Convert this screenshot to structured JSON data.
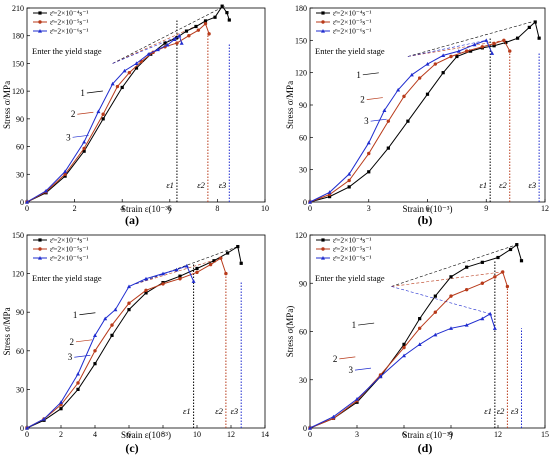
{
  "chart_data": [
    {
      "type": "line",
      "panel": "(a)",
      "xlabel": "Strain ε(10⁻³)",
      "ylabel": "Stress σ/MPa",
      "xlim": [
        0,
        10
      ],
      "ylim": [
        0,
        210
      ],
      "xticks": [
        0,
        2,
        4,
        6,
        8,
        10
      ],
      "yticks": [
        0,
        30,
        60,
        90,
        120,
        150,
        180,
        210
      ],
      "annotation": "Enter the yield stage",
      "strain_labels": [
        "ε1",
        "ε2",
        "ε3"
      ],
      "curve_numbers": [
        "1",
        "2",
        "3"
      ],
      "legend_placement": "top-left",
      "series": [
        {
          "name": "ε̄=2×10⁻⁴s⁻¹",
          "color": "#000000",
          "marker": "square",
          "x": [
            0,
            0.8,
            1.6,
            2.4,
            3.2,
            4.0,
            4.6,
            5.2,
            5.8,
            6.3,
            6.7,
            7.1,
            7.5,
            7.9,
            8.2,
            8.4,
            8.5
          ],
          "y": [
            0,
            10,
            28,
            55,
            90,
            124,
            145,
            160,
            172,
            178,
            185,
            190,
            196,
            200,
            212,
            205,
            197
          ]
        },
        {
          "name": "ε̄=2×10⁻⁵s⁻¹",
          "color": "#b83a1a",
          "marker": "circle",
          "x": [
            0,
            0.8,
            1.6,
            2.4,
            3.2,
            3.8,
            4.3,
            4.8,
            5.3,
            5.8,
            6.3,
            6.8,
            7.2,
            7.5,
            7.65
          ],
          "y": [
            0,
            11,
            30,
            58,
            95,
            125,
            140,
            152,
            162,
            168,
            172,
            180,
            186,
            193,
            182
          ]
        },
        {
          "name": "ε̄=2×10⁻⁶s⁻¹",
          "color": "#1f2ccf",
          "marker": "triangle",
          "x": [
            0,
            0.8,
            1.6,
            2.4,
            3.0,
            3.6,
            4.1,
            4.6,
            5.1,
            5.5,
            5.9,
            6.2,
            6.4,
            6.5
          ],
          "y": [
            0,
            12,
            33,
            65,
            98,
            128,
            142,
            150,
            160,
            165,
            170,
            176,
            180,
            172
          ]
        }
      ],
      "strain_values": [
        6.3,
        7.6,
        8.5
      ],
      "yield_lines": [
        {
          "color": "#000000",
          "x": [
            3.6,
            8.3
          ],
          "y": [
            150,
            212
          ]
        },
        {
          "color": "#b83a1a",
          "x": [
            3.6,
            7.5
          ],
          "y": [
            150,
            195
          ]
        },
        {
          "color": "#1f2ccf",
          "x": [
            3.6,
            6.4
          ],
          "y": [
            150,
            180
          ]
        }
      ]
    },
    {
      "type": "line",
      "panel": "(b)",
      "xlabel": "Strain ε(10⁻³)",
      "ylabel": "Stress σ/MPa",
      "xlim": [
        0,
        12
      ],
      "ylim": [
        0,
        180
      ],
      "xticks": [
        0,
        3,
        6,
        9,
        12
      ],
      "yticks": [
        0,
        30,
        60,
        90,
        120,
        150,
        180
      ],
      "annotation": "Enter the yield stage",
      "strain_labels": [
        "ε1",
        "ε2",
        "ε3"
      ],
      "curve_numbers": [
        "1",
        "2",
        "3"
      ],
      "legend_placement": "top-left",
      "series": [
        {
          "name": "ε̄=2×10⁻⁴s⁻¹",
          "color": "#000000",
          "marker": "square",
          "x": [
            0,
            1,
            2,
            3,
            4,
            5,
            6,
            6.8,
            7.5,
            8.2,
            8.8,
            9.4,
            10.0,
            10.6,
            11.2,
            11.5,
            11.7
          ],
          "y": [
            0,
            5,
            14,
            28,
            50,
            75,
            100,
            120,
            135,
            140,
            143,
            145,
            148,
            152,
            162,
            167,
            152
          ]
        },
        {
          "name": "ε̄=2×10⁻⁵s⁻¹",
          "color": "#b83a1a",
          "marker": "circle",
          "x": [
            0,
            1,
            2,
            3,
            4,
            4.8,
            5.6,
            6.4,
            7.2,
            8.0,
            8.8,
            9.4,
            9.9,
            10.2
          ],
          "y": [
            0,
            7,
            20,
            45,
            75,
            98,
            115,
            128,
            135,
            140,
            144,
            147,
            150,
            140
          ]
        },
        {
          "name": "ε̄=2×10⁻⁶s⁻¹",
          "color": "#1f2ccf",
          "marker": "triangle",
          "x": [
            0,
            1,
            2,
            3,
            3.8,
            4.5,
            5.2,
            6.0,
            6.8,
            7.6,
            8.4,
            9.0,
            9.3
          ],
          "y": [
            0,
            9,
            26,
            55,
            85,
            104,
            118,
            128,
            136,
            140,
            146,
            150,
            138
          ]
        }
      ],
      "strain_values": [
        9.2,
        10.2,
        11.7
      ],
      "yield_lines": [
        {
          "color": "#000000",
          "x": [
            5.0,
            11.3
          ],
          "y": [
            135,
            167
          ]
        },
        {
          "color": "#b83a1a",
          "x": [
            5.0,
            9.9
          ],
          "y": [
            135,
            150
          ]
        },
        {
          "color": "#1f2ccf",
          "x": [
            5.0,
            9.0
          ],
          "y": [
            135,
            150
          ]
        }
      ]
    },
    {
      "type": "line",
      "panel": "(c)",
      "xlabel": "Strain ε(10⁻³)",
      "ylabel": "Stress σ/MPa",
      "xlim": [
        0,
        14
      ],
      "ylim": [
        0,
        150
      ],
      "xticks": [
        0,
        2,
        4,
        6,
        8,
        10,
        12,
        14
      ],
      "yticks": [
        0,
        30,
        60,
        90,
        120,
        150
      ],
      "annotation": "Enter the yield stage",
      "strain_labels": [
        "ε1",
        "ε2",
        "ε3"
      ],
      "curve_numbers": [
        "1",
        "2",
        "3"
      ],
      "legend_placement": "top-left",
      "series": [
        {
          "name": "ε̄=2×10⁻⁴s⁻¹",
          "color": "#000000",
          "marker": "square",
          "x": [
            0,
            1,
            2,
            3,
            4,
            5,
            6,
            7,
            8,
            9,
            10,
            11,
            11.8,
            12.4,
            12.6
          ],
          "y": [
            0,
            6,
            15,
            30,
            50,
            72,
            92,
            105,
            113,
            118,
            124,
            130,
            136,
            141,
            128
          ]
        },
        {
          "name": "ε̄=2×10⁻⁵s⁻¹",
          "color": "#b83a1a",
          "marker": "circle",
          "x": [
            0,
            1,
            2,
            3,
            4,
            5,
            6,
            7,
            8,
            9,
            10,
            10.8,
            11.4,
            11.7
          ],
          "y": [
            0,
            7,
            18,
            35,
            60,
            80,
            97,
            107,
            112,
            116,
            121,
            127,
            132,
            120
          ]
        },
        {
          "name": "ε̄=2×10⁻⁶s⁻¹",
          "color": "#1f2ccf",
          "marker": "triangle",
          "x": [
            0,
            1,
            2,
            3,
            4,
            4.6,
            5.2,
            6.0,
            7.0,
            8.0,
            8.8,
            9.4,
            9.8
          ],
          "y": [
            0,
            7,
            20,
            42,
            72,
            85,
            92,
            110,
            116,
            120,
            123,
            126,
            114
          ]
        }
      ],
      "strain_values": [
        9.8,
        11.7,
        12.6
      ],
      "yield_lines": [
        {
          "color": "#000000",
          "x": [
            6.4,
            12.4
          ],
          "y": [
            112,
            141
          ]
        },
        {
          "color": "#b83a1a",
          "x": [
            6.4,
            11.4
          ],
          "y": [
            112,
            132
          ]
        },
        {
          "color": "#1f2ccf",
          "x": [
            6.4,
            9.4
          ],
          "y": [
            112,
            126
          ]
        }
      ]
    },
    {
      "type": "line",
      "panel": "(d)",
      "xlabel": "Strain ε(10⁻³)",
      "ylabel": "Stress σ(MPa)",
      "xlim": [
        0,
        15
      ],
      "ylim": [
        0,
        120
      ],
      "xticks": [
        0,
        3,
        6,
        9,
        12,
        15
      ],
      "yticks": [
        0,
        30,
        60,
        90,
        120
      ],
      "annotation": "Enter the yield stage",
      "strain_labels": [
        "ε1",
        "ε2",
        "ε3"
      ],
      "curve_numbers": [
        "1",
        "2",
        "3"
      ],
      "legend_placement": "top-left",
      "series": [
        {
          "name": "ε̄=2×10⁻⁴s⁻¹",
          "color": "#000000",
          "marker": "square",
          "x": [
            0,
            1.5,
            3,
            4.5,
            6,
            7,
            8,
            9,
            10,
            11,
            12,
            12.8,
            13.2,
            13.5
          ],
          "y": [
            0,
            6,
            16,
            32,
            52,
            68,
            82,
            94,
            100,
            103,
            106,
            111,
            114,
            104
          ]
        },
        {
          "name": "ε̄=2×10⁻⁵s⁻¹",
          "color": "#b83a1a",
          "marker": "circle",
          "x": [
            0,
            1.5,
            3,
            4.5,
            6,
            7,
            8,
            9,
            10,
            11,
            11.8,
            12.3,
            12.6
          ],
          "y": [
            0,
            6,
            17,
            33,
            50,
            62,
            72,
            82,
            86,
            90,
            94,
            97,
            88
          ]
        },
        {
          "name": "ε̄=2×10⁻⁶s⁻¹",
          "color": "#1f2ccf",
          "marker": "triangle",
          "x": [
            0,
            1.5,
            3,
            4.5,
            6,
            7,
            8,
            9,
            10,
            11,
            11.5,
            11.8
          ],
          "y": [
            0,
            7,
            18,
            32,
            45,
            52,
            58,
            62,
            64,
            68,
            71,
            62
          ]
        }
      ],
      "strain_values": [
        11.8,
        12.6,
        13.5
      ],
      "yield_lines": [
        {
          "color": "#000000",
          "x": [
            5.2,
            13.2
          ],
          "y": [
            88,
            114
          ]
        },
        {
          "color": "#b83a1a",
          "x": [
            5.2,
            12.2
          ],
          "y": [
            88,
            97
          ]
        },
        {
          "color": "#1f2ccf",
          "x": [
            5.2,
            11.5
          ],
          "y": [
            88,
            71
          ]
        }
      ]
    }
  ]
}
